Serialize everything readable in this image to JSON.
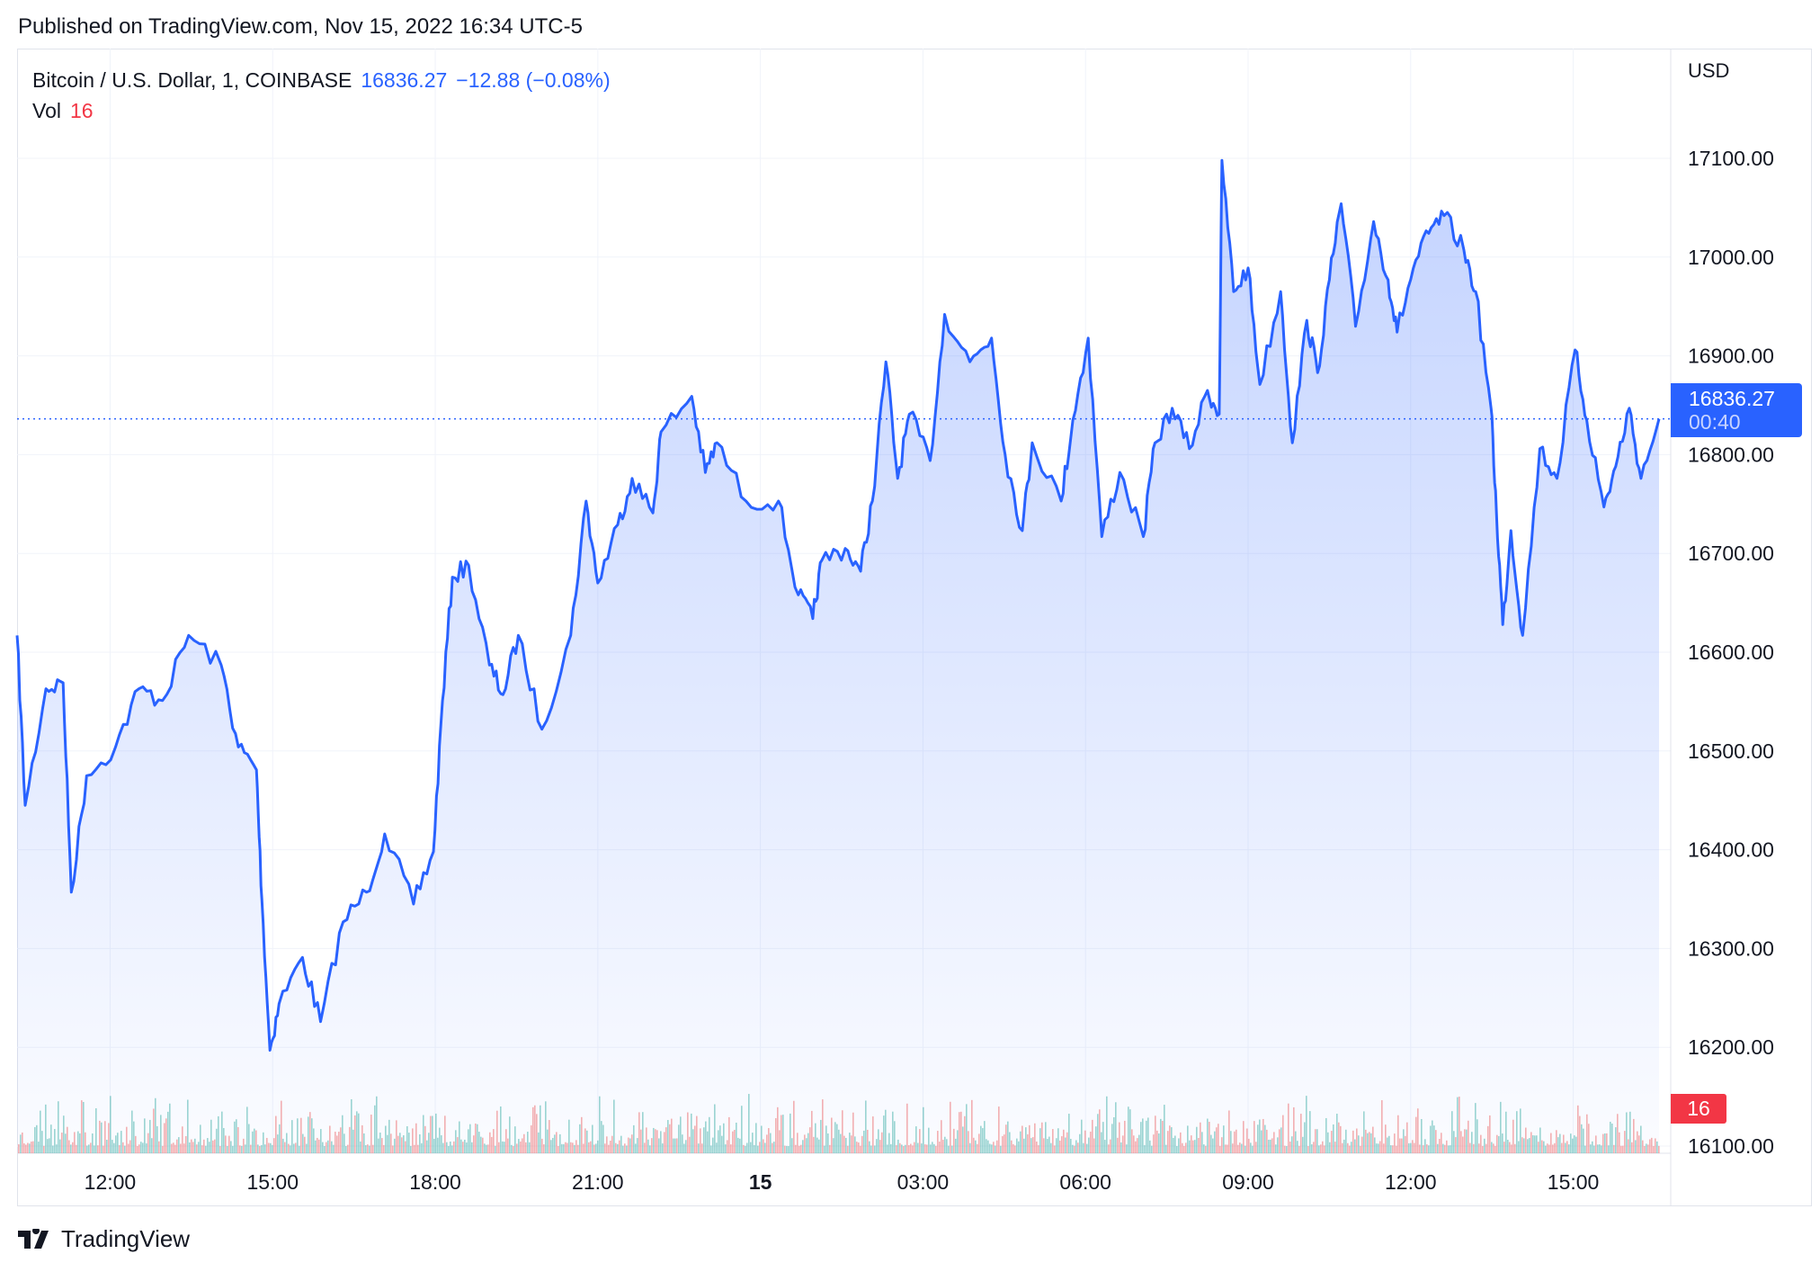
{
  "published": "Published on TradingView.com, Nov 15, 2022 16:34 UTC-5",
  "legend": {
    "symbol": "Bitcoin / U.S. Dollar, 1, COINBASE",
    "last": "16836.27",
    "change": "−12.88 (−0.08%)",
    "vol_label": "Vol",
    "vol_value": "16"
  },
  "currency": "USD",
  "current_price_label": {
    "price": "16836.27",
    "countdown": "00:40"
  },
  "volume_label": "16",
  "brand": "TradingView",
  "colors": {
    "line": "#2962ff",
    "up_volume": "#26a69a",
    "down_volume": "#ef5350",
    "grid": "#f0f3fa"
  },
  "chart_data": {
    "type": "area",
    "title": "",
    "xlabel": "",
    "ylabel": "",
    "ylim": [
      16100,
      17100
    ],
    "grid": true,
    "y_ticks": [
      "17100.00",
      "17000.00",
      "16900.00",
      "16800.00",
      "16700.00",
      "16600.00",
      "16500.00",
      "16400.00",
      "16300.00",
      "16200.00",
      "16100.00"
    ],
    "x_ticks": [
      {
        "t": "2022-11-14 12:00",
        "label": "12:00"
      },
      {
        "t": "2022-11-14 15:00",
        "label": "15:00"
      },
      {
        "t": "2022-11-14 18:00",
        "label": "18:00"
      },
      {
        "t": "2022-11-14 21:00",
        "label": "21:00"
      },
      {
        "t": "2022-11-15 00:00",
        "label": "15",
        "bold": true
      },
      {
        "t": "2022-11-15 03:00",
        "label": "03:00"
      },
      {
        "t": "2022-11-15 06:00",
        "label": "06:00"
      },
      {
        "t": "2022-11-15 09:00",
        "label": "09:00"
      },
      {
        "t": "2022-11-15 12:00",
        "label": "12:00"
      },
      {
        "t": "2022-11-15 15:00",
        "label": "15:00"
      }
    ],
    "x_range": [
      "2022-11-14 10:17",
      "2022-11-15 16:35"
    ],
    "last_price": 16836.27,
    "series": [
      {
        "points": [
          [
            "2022-11-14 10:17",
            16617
          ],
          [
            "2022-11-14 10:26",
            16445
          ],
          [
            "2022-11-14 10:49",
            16563
          ],
          [
            "2022-11-14 11:08",
            16569
          ],
          [
            "2022-11-14 11:17",
            16357
          ],
          [
            "2022-11-14 11:34",
            16475
          ],
          [
            "2022-11-14 12:06",
            16504
          ],
          [
            "2022-11-14 12:32",
            16563
          ],
          [
            "2022-11-14 12:58",
            16551
          ],
          [
            "2022-11-14 13:27",
            16617
          ],
          [
            "2022-11-14 14:03",
            16587
          ],
          [
            "2022-11-14 14:22",
            16504
          ],
          [
            "2022-11-14 14:42",
            16481
          ],
          [
            "2022-11-14 14:48",
            16350
          ],
          [
            "2022-11-14 14:57",
            16197
          ],
          [
            "2022-11-14 15:07",
            16244
          ],
          [
            "2022-11-14 15:33",
            16291
          ],
          [
            "2022-11-14 15:53",
            16226
          ],
          [
            "2022-11-14 16:18",
            16327
          ],
          [
            "2022-11-14 16:44",
            16357
          ],
          [
            "2022-11-14 17:04",
            16416
          ],
          [
            "2022-11-14 17:36",
            16345
          ],
          [
            "2022-11-14 17:58",
            16398
          ],
          [
            "2022-11-14 18:08",
            16551
          ],
          [
            "2022-11-14 18:19",
            16676
          ],
          [
            "2022-11-14 18:37",
            16688
          ],
          [
            "2022-11-14 19:00",
            16587
          ],
          [
            "2022-11-14 19:15",
            16557
          ],
          [
            "2022-11-14 19:32",
            16617
          ],
          [
            "2022-11-14 19:58",
            16522
          ],
          [
            "2022-11-14 20:30",
            16617
          ],
          [
            "2022-11-14 20:47",
            16753
          ],
          [
            "2022-11-14 21:00",
            16670
          ],
          [
            "2022-11-14 21:22",
            16729
          ],
          [
            "2022-11-14 21:38",
            16776
          ],
          [
            "2022-11-14 22:01",
            16741
          ],
          [
            "2022-11-14 22:10",
            16823
          ],
          [
            "2022-11-14 22:44",
            16859
          ],
          [
            "2022-11-14 22:59",
            16782
          ],
          [
            "2022-11-14 23:12",
            16812
          ],
          [
            "2022-11-14 23:44",
            16753
          ],
          [
            "2022-11-15 00:20",
            16753
          ],
          [
            "2022-11-15 00:42",
            16658
          ],
          [
            "2022-11-15 00:58",
            16634
          ],
          [
            "2022-11-15 01:08",
            16693
          ],
          [
            "2022-11-15 01:34",
            16705
          ],
          [
            "2022-11-15 01:51",
            16682
          ],
          [
            "2022-11-15 02:04",
            16753
          ],
          [
            "2022-11-15 02:19",
            16894
          ],
          [
            "2022-11-15 02:32",
            16776
          ],
          [
            "2022-11-15 02:45",
            16841
          ],
          [
            "2022-11-15 03:08",
            16794
          ],
          [
            "2022-11-15 03:24",
            16942
          ],
          [
            "2022-11-15 03:52",
            16894
          ],
          [
            "2022-11-15 04:16",
            16918
          ],
          [
            "2022-11-15 04:31",
            16800
          ],
          [
            "2022-11-15 04:50",
            16723
          ],
          [
            "2022-11-15 05:01",
            16812
          ],
          [
            "2022-11-15 05:33",
            16753
          ],
          [
            "2022-11-15 05:46",
            16835
          ],
          [
            "2022-11-15 06:03",
            16918
          ],
          [
            "2022-11-15 06:18",
            16717
          ],
          [
            "2022-11-15 06:38",
            16782
          ],
          [
            "2022-11-15 07:04",
            16717
          ],
          [
            "2022-11-15 07:17",
            16812
          ],
          [
            "2022-11-15 07:36",
            16847
          ],
          [
            "2022-11-15 07:55",
            16806
          ],
          [
            "2022-11-15 08:15",
            16865
          ],
          [
            "2022-11-15 08:28",
            16841
          ],
          [
            "2022-11-15 08:31",
            17098
          ],
          [
            "2022-11-15 08:44",
            16965
          ],
          [
            "2022-11-15 09:00",
            16989
          ],
          [
            "2022-11-15 09:13",
            16871
          ],
          [
            "2022-11-15 09:36",
            16965
          ],
          [
            "2022-11-15 09:49",
            16812
          ],
          [
            "2022-11-15 10:05",
            16936
          ],
          [
            "2022-11-15 10:17",
            16883
          ],
          [
            "2022-11-15 10:30",
            16977
          ],
          [
            "2022-11-15 10:43",
            17054
          ],
          [
            "2022-11-15 10:59",
            16930
          ],
          [
            "2022-11-15 11:19",
            17036
          ],
          [
            "2022-11-15 11:35",
            16977
          ],
          [
            "2022-11-15 11:45",
            16924
          ],
          [
            "2022-11-15 12:03",
            16989
          ],
          [
            "2022-11-15 12:20",
            17024
          ],
          [
            "2022-11-15 12:37",
            17042
          ],
          [
            "2022-11-15 12:59",
            17007
          ],
          [
            "2022-11-15 13:12",
            16965
          ],
          [
            "2022-11-15 13:29",
            16847
          ],
          [
            "2022-11-15 13:35",
            16741
          ],
          [
            "2022-11-15 13:42",
            16628
          ],
          [
            "2022-11-15 13:51",
            16723
          ],
          [
            "2022-11-15 14:04",
            16617
          ],
          [
            "2022-11-15 14:23",
            16806
          ],
          [
            "2022-11-15 14:42",
            16776
          ],
          [
            "2022-11-15 15:02",
            16906
          ],
          [
            "2022-11-15 15:15",
            16835
          ],
          [
            "2022-11-15 15:34",
            16747
          ],
          [
            "2022-11-15 15:47",
            16788
          ],
          [
            "2022-11-15 16:02",
            16847
          ],
          [
            "2022-11-15 16:15",
            16776
          ],
          [
            "2022-11-15 16:35",
            16836.27
          ]
        ]
      }
    ]
  }
}
